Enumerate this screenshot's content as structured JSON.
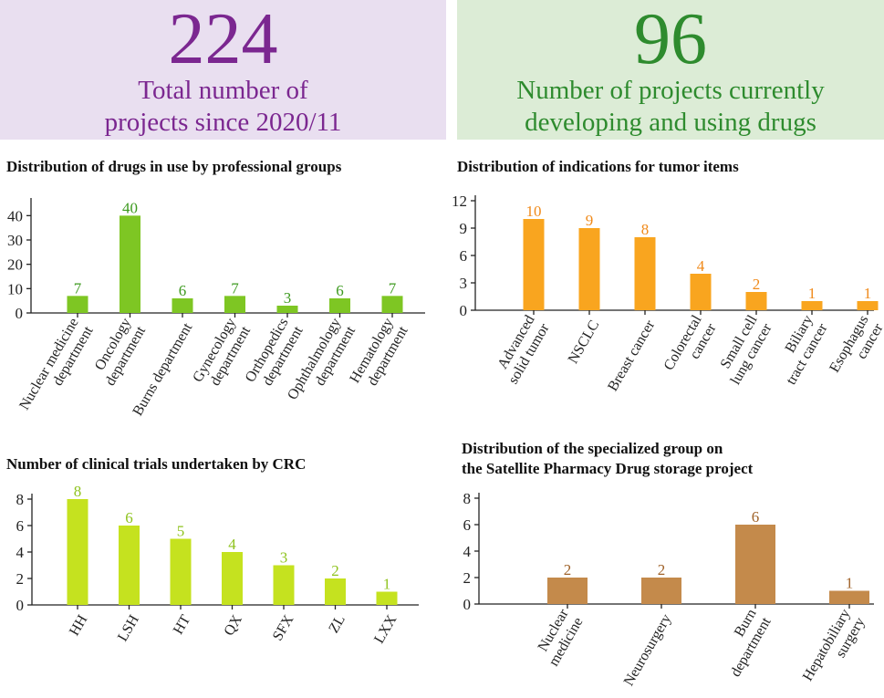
{
  "banners": {
    "left": {
      "number": "224",
      "line1": "Total number of",
      "line2": "projects since 2020/11"
    },
    "right": {
      "number": "96",
      "line1": "Number of projects currently",
      "line2": "developing and using drugs"
    }
  },
  "colors": {
    "purple": "#7b2790",
    "green_text": "#2e8b2e",
    "bar_green": "#7ec623",
    "label_green": "#3d9a1f",
    "bar_orange": "#f9a51f",
    "label_orange": "#f08a1a",
    "bar_lime": "#c5e21f",
    "label_lime": "#8fc31f",
    "bar_brown": "#c48a4b",
    "label_brown": "#a0632a"
  },
  "chart_data": [
    {
      "type": "bar",
      "title": "Distribution of drugs in use by professional groups",
      "categories": [
        "Nuclear medicine department",
        "Oncology department",
        "Burns department",
        "Gynecology department",
        "Orthopedics department",
        "Ophthalmology department",
        "Hematology department"
      ],
      "values": [
        7,
        40,
        6,
        7,
        3,
        6,
        7
      ],
      "yticks": [
        0,
        10,
        20,
        30,
        40
      ],
      "ylim": [
        0,
        45
      ]
    },
    {
      "type": "bar",
      "title": "Distribution of indications for tumor items",
      "categories": [
        "Advanced solid tumor",
        "NSCLC",
        "Breast cancer",
        "Colorectal cancer",
        "Small cell lung cancer",
        "Biliary tract cancer",
        "Esophagus cancer"
      ],
      "values": [
        10,
        9,
        8,
        4,
        2,
        1,
        1
      ],
      "yticks": [
        0,
        3,
        6,
        9,
        12
      ],
      "ylim": [
        0,
        12
      ]
    },
    {
      "type": "bar",
      "title": "Number of clinical trials undertaken by CRC",
      "categories": [
        "HH",
        "LSH",
        "HT",
        "QX",
        "SFX",
        "ZL",
        "LXX"
      ],
      "values": [
        8,
        6,
        5,
        4,
        3,
        2,
        1
      ],
      "yticks": [
        0,
        2,
        4,
        6,
        8
      ],
      "ylim": [
        0,
        8
      ]
    },
    {
      "type": "bar",
      "title_line1": "Distribution of the specialized group on",
      "title_line2": "the Satellite Pharmacy Drug storage project",
      "categories": [
        "Nuclear medicine",
        "Neurosurgery",
        "Burn department",
        "Hepatobiliary surgery"
      ],
      "values": [
        2,
        2,
        6,
        1
      ],
      "yticks": [
        0,
        2,
        4,
        6,
        8
      ],
      "ylim": [
        0,
        8
      ]
    }
  ]
}
